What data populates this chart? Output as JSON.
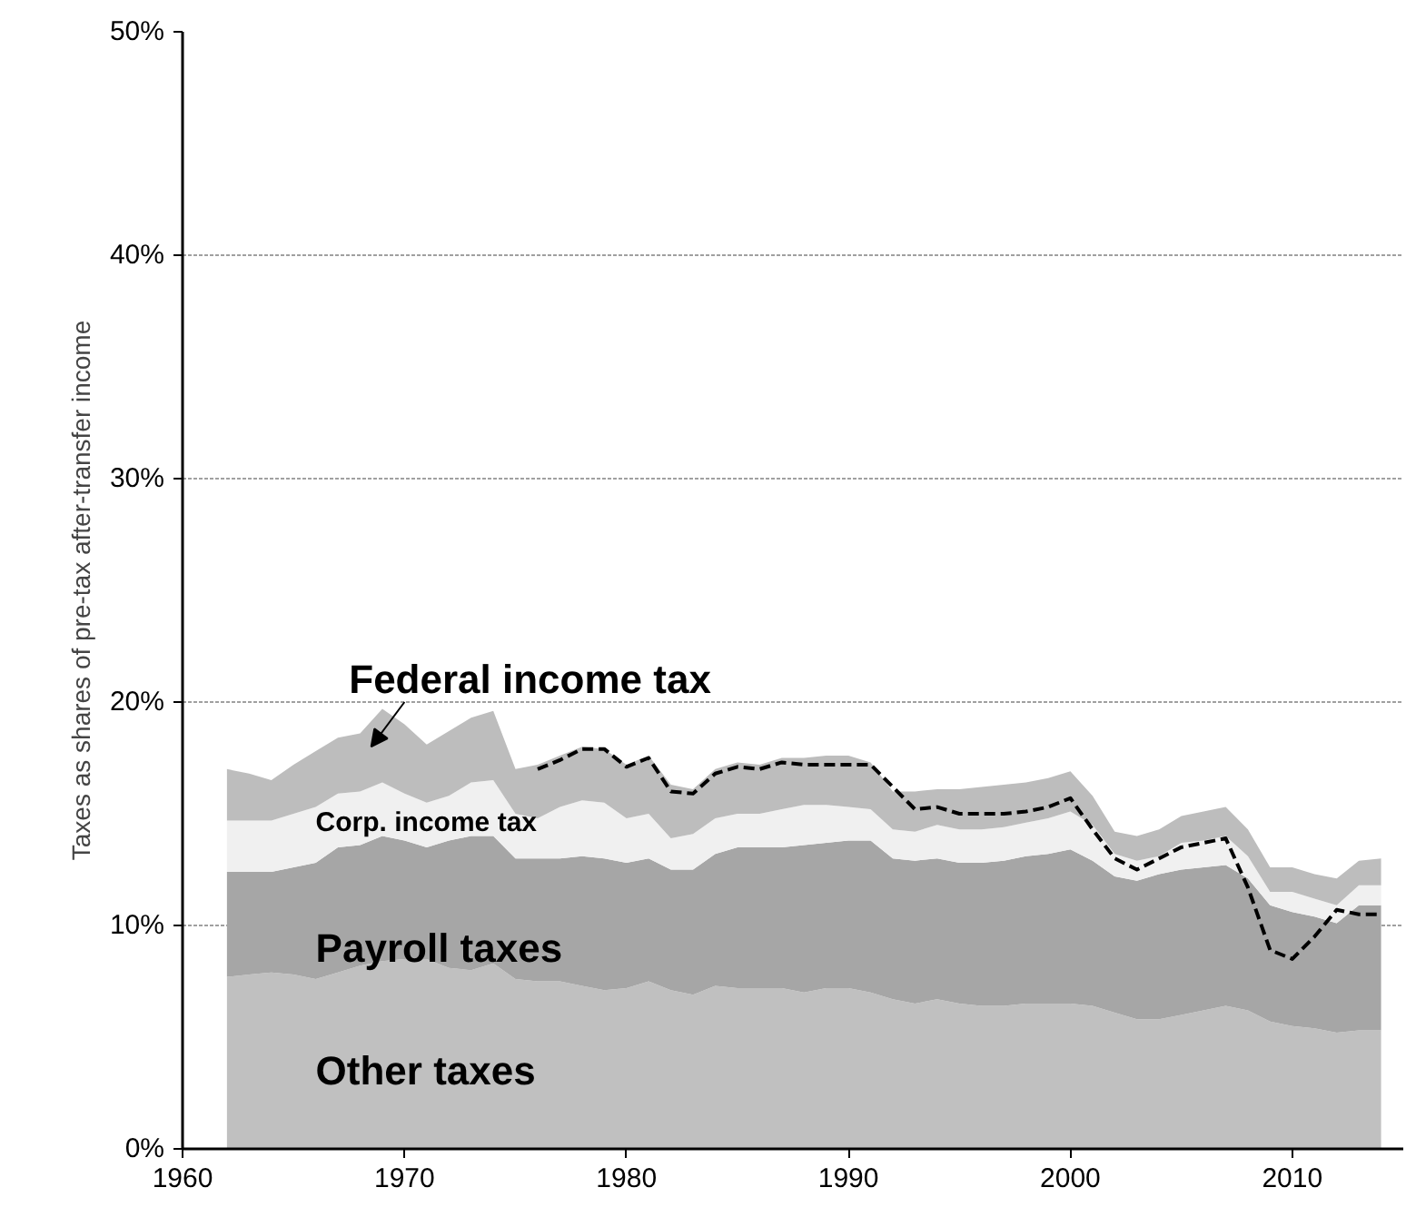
{
  "chart_data": {
    "type": "area",
    "stacked": true,
    "ylabel": "Taxes as shares of pre-tax after-transfer income",
    "x": [
      1962,
      1963,
      1964,
      1965,
      1966,
      1967,
      1968,
      1969,
      1970,
      1971,
      1972,
      1973,
      1974,
      1975,
      1976,
      1977,
      1978,
      1979,
      1980,
      1981,
      1982,
      1983,
      1984,
      1985,
      1986,
      1987,
      1988,
      1989,
      1990,
      1991,
      1992,
      1993,
      1994,
      1995,
      1996,
      1997,
      1998,
      1999,
      2000,
      2001,
      2002,
      2003,
      2004,
      2005,
      2006,
      2007,
      2008,
      2009,
      2010,
      2011,
      2012,
      2013,
      2014
    ],
    "series": [
      {
        "name": "Other taxes",
        "color": "#c0c0c0",
        "values": [
          7.7,
          7.8,
          7.9,
          7.8,
          7.6,
          7.9,
          8.2,
          8.4,
          8.5,
          8.5,
          8.1,
          8.0,
          8.3,
          7.6,
          7.5,
          7.5,
          7.3,
          7.1,
          7.2,
          7.5,
          7.1,
          6.9,
          7.3,
          7.2,
          7.2,
          7.2,
          7.0,
          7.2,
          7.2,
          7.0,
          6.7,
          6.5,
          6.7,
          6.5,
          6.4,
          6.4,
          6.5,
          6.5,
          6.5,
          6.4,
          6.1,
          5.8,
          5.8,
          6.0,
          6.2,
          6.4,
          6.2,
          5.7,
          5.5,
          5.4,
          5.2,
          5.3,
          5.3
        ]
      },
      {
        "name": "Payroll taxes",
        "color": "#a6a6a6",
        "values": [
          4.7,
          4.6,
          4.5,
          4.8,
          5.2,
          5.6,
          5.4,
          5.6,
          5.3,
          5.0,
          5.7,
          6.0,
          5.7,
          5.4,
          5.5,
          5.5,
          5.8,
          5.9,
          5.6,
          5.5,
          5.4,
          5.6,
          5.9,
          6.3,
          6.3,
          6.3,
          6.6,
          6.5,
          6.6,
          6.8,
          6.3,
          6.4,
          6.3,
          6.3,
          6.4,
          6.5,
          6.6,
          6.7,
          6.9,
          6.5,
          6.1,
          6.2,
          6.5,
          6.5,
          6.4,
          6.3,
          5.9,
          5.2,
          5.1,
          5.0,
          4.9,
          5.6,
          5.6
        ]
      },
      {
        "name": "Corp. income tax",
        "color": "#f0f0f0",
        "values": [
          2.3,
          2.3,
          2.3,
          2.4,
          2.5,
          2.4,
          2.4,
          2.4,
          2.1,
          2.0,
          2.0,
          2.4,
          2.5,
          2.0,
          1.8,
          2.3,
          2.5,
          2.5,
          2.0,
          2.0,
          1.4,
          1.6,
          1.6,
          1.5,
          1.5,
          1.7,
          1.8,
          1.7,
          1.5,
          1.4,
          1.3,
          1.3,
          1.5,
          1.5,
          1.5,
          1.5,
          1.5,
          1.6,
          1.7,
          1.6,
          1.0,
          0.9,
          0.8,
          1.2,
          1.2,
          1.3,
          1.0,
          0.6,
          0.9,
          0.8,
          0.8,
          0.9,
          0.9
        ]
      },
      {
        "name": "Federal income tax",
        "color": "#bdbdbd",
        "values": [
          2.3,
          2.1,
          1.8,
          2.2,
          2.5,
          2.5,
          2.6,
          3.3,
          3.1,
          2.6,
          2.9,
          2.9,
          3.1,
          2.0,
          2.4,
          2.3,
          2.4,
          2.4,
          2.4,
          2.6,
          2.4,
          2.0,
          2.2,
          2.3,
          2.2,
          2.3,
          2.1,
          2.2,
          2.3,
          2.1,
          1.7,
          1.8,
          1.6,
          1.8,
          1.9,
          1.9,
          1.8,
          1.8,
          1.8,
          1.3,
          1.0,
          1.1,
          1.2,
          1.2,
          1.3,
          1.3,
          1.2,
          1.1,
          1.1,
          1.1,
          1.2,
          1.1,
          1.2
        ]
      },
      {
        "type": "line",
        "line_style": "dashed",
        "color": "#000000",
        "x": [
          1976,
          1977,
          1978,
          1979,
          1980,
          1981,
          1982,
          1983,
          1984,
          1985,
          1986,
          1987,
          1988,
          1989,
          1990,
          1991,
          1992,
          1993,
          1994,
          1995,
          1996,
          1997,
          1998,
          1999,
          2000,
          2001,
          2002,
          2003,
          2004,
          2005,
          2006,
          2007,
          2008,
          2009,
          2010,
          2011,
          2012,
          2013,
          2014
        ],
        "values": [
          17.0,
          17.4,
          17.9,
          17.9,
          17.1,
          17.5,
          16.0,
          15.9,
          16.8,
          17.1,
          17.0,
          17.3,
          17.2,
          17.2,
          17.2,
          17.2,
          16.2,
          15.2,
          15.3,
          15.0,
          15.0,
          15.0,
          15.1,
          15.3,
          15.7,
          14.3,
          13.0,
          12.5,
          13.0,
          13.5,
          13.7,
          13.9,
          11.7,
          8.9,
          8.5,
          9.5,
          10.7,
          10.5,
          10.5
        ]
      }
    ],
    "xlim": [
      1960,
      2015
    ],
    "xticks": [
      1960,
      1970,
      1980,
      1990,
      2000,
      2010
    ],
    "ylim": [
      0,
      50
    ],
    "yticks": [
      {
        "value": 0,
        "label": "0%"
      },
      {
        "value": 10,
        "label": "10%"
      },
      {
        "value": 20,
        "label": "20%"
      },
      {
        "value": 30,
        "label": "30%"
      },
      {
        "value": 40,
        "label": "40%"
      },
      {
        "value": 50,
        "label": "50%"
      }
    ],
    "grid": "y",
    "legend": false
  }
}
